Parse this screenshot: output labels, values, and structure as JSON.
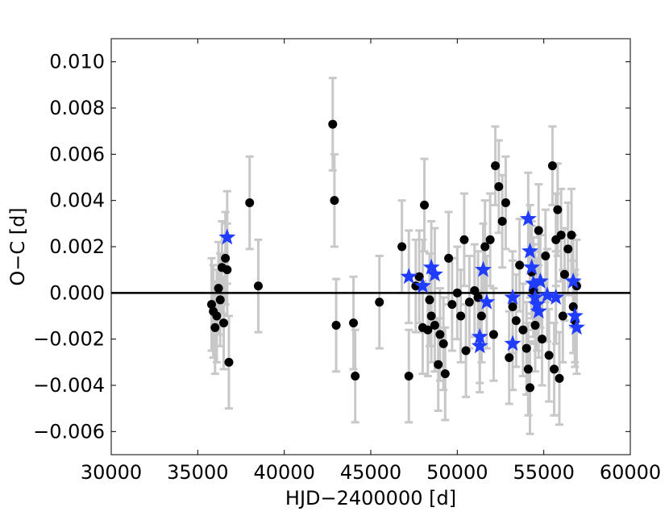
{
  "chart_data": {
    "type": "scatter",
    "xlabel": "HJD−2400000 [d]",
    "ylabel": "O−C [d]",
    "xlim": [
      30000,
      60000
    ],
    "ylim": [
      -0.007,
      0.011
    ],
    "xticks": [
      30000,
      35000,
      40000,
      45000,
      50000,
      55000,
      60000
    ],
    "yticks": [
      -0.006,
      -0.004,
      -0.002,
      0.0,
      0.002,
      0.004,
      0.006,
      0.008,
      0.01
    ],
    "xtick_labels": [
      "30000",
      "35000",
      "40000",
      "45000",
      "50000",
      "55000",
      "60000"
    ],
    "ytick_labels": [
      "−0.006",
      "−0.004",
      "−0.002",
      "0.000",
      "0.002",
      "0.004",
      "0.006",
      "0.008",
      "0.010"
    ],
    "reference_line_y": 0.0,
    "grid": false,
    "legend": "none",
    "colors": {
      "circles": "#000000",
      "stars": "#1f3cff",
      "errorbars": "#c8c8c8",
      "zero_line": "#000000"
    },
    "series": [
      {
        "marker": "circle",
        "x": [
          35800,
          35900,
          36000,
          36100,
          36200,
          36300,
          36400,
          36500,
          36600,
          36700,
          36800,
          38000,
          38500,
          42800,
          42900,
          43000,
          44000,
          44100,
          45500,
          46800,
          47200,
          47600,
          47800,
          48000,
          48100,
          48300,
          48400,
          48500,
          48700,
          48900,
          49000,
          49200,
          49300,
          49500,
          49700,
          50000,
          50200,
          50400,
          50500,
          50700,
          51000,
          51200,
          51400,
          51600,
          51900,
          52100,
          52200,
          52400,
          52600,
          52800,
          53000,
          53200,
          53400,
          53600,
          53800,
          54000,
          54100,
          54200,
          54300,
          54400,
          54500,
          54700,
          54900,
          55100,
          55300,
          55500,
          55600,
          55700,
          55800,
          55900,
          56000,
          56100,
          56200,
          56400,
          56600,
          56700,
          56800,
          56900
        ],
        "y": [
          -0.0005,
          -0.0008,
          -0.0015,
          -0.001,
          0.0002,
          -0.0003,
          0.0011,
          -0.0013,
          0.0015,
          0.001,
          -0.003,
          0.0039,
          0.0003,
          0.0073,
          0.004,
          -0.0014,
          -0.0013,
          -0.0036,
          -0.0004,
          0.002,
          -0.0036,
          0.0003,
          0.0007,
          -0.0015,
          0.0038,
          -0.0016,
          -0.0003,
          -0.001,
          -0.0014,
          -0.0031,
          -0.0018,
          -0.0022,
          -0.0035,
          0.0015,
          -0.0005,
          0.0,
          -0.001,
          0.0023,
          -0.0025,
          -0.0004,
          0.0001,
          -0.0002,
          -0.001,
          0.002,
          0.0023,
          -0.0018,
          0.0055,
          0.0046,
          0.0031,
          0.0039,
          -0.0028,
          -0.0006,
          -0.0012,
          0.0012,
          -0.0016,
          -0.0024,
          -0.0033,
          -0.0041,
          0.0009,
          0.0001,
          -0.0014,
          0.0027,
          -0.002,
          0.0016,
          -0.0027,
          0.0055,
          -0.0033,
          0.0023,
          0.0036,
          -0.0037,
          0.0025,
          -0.001,
          0.0008,
          0.0019,
          0.0025,
          -0.0006,
          -0.0012,
          0.0003
        ],
        "yerr": [
          0.002,
          0.002,
          0.002,
          0.002,
          0.002,
          0.002,
          0.002,
          0.002,
          0.002,
          0.002,
          0.002,
          0.002,
          0.002,
          0.002,
          0.002,
          0.002,
          0.002,
          0.002,
          0.002,
          0.002,
          0.002,
          0.002,
          0.002,
          0.002,
          0.002,
          0.002,
          0.002,
          0.002,
          0.002,
          0.002,
          0.002,
          0.002,
          0.002,
          0.002,
          0.002,
          0.002,
          0.002,
          0.002,
          0.002,
          0.002,
          0.002,
          0.002,
          0.002,
          0.002,
          0.002,
          0.002,
          0.0017,
          0.002,
          0.002,
          0.002,
          0.002,
          0.002,
          0.002,
          0.002,
          0.002,
          0.002,
          0.002,
          0.002,
          0.002,
          0.002,
          0.002,
          0.002,
          0.002,
          0.002,
          0.002,
          0.0017,
          0.002,
          0.002,
          0.002,
          0.002,
          0.002,
          0.002,
          0.002,
          0.002,
          0.002,
          0.002,
          0.002,
          0.002
        ]
      },
      {
        "marker": "star",
        "x": [
          36700,
          47200,
          48000,
          48500,
          48700,
          51300,
          51300,
          51500,
          51700,
          53200,
          53200,
          54100,
          54200,
          54300,
          54400,
          54500,
          54600,
          54700,
          54800,
          55200,
          55700,
          56700,
          56800,
          56900
        ],
        "y": [
          0.0024,
          0.0007,
          0.0003,
          0.0011,
          0.0008,
          -0.0019,
          -0.0023,
          0.001,
          -0.0004,
          -0.0002,
          -0.0022,
          0.0032,
          0.0018,
          0.0011,
          0.0004,
          -0.0002,
          -0.0005,
          -0.0008,
          0.0005,
          -0.0001,
          -0.0002,
          0.0005,
          -0.001,
          -0.0015
        ],
        "yerr": [
          0.002,
          0.002,
          0.002,
          0.002,
          0.002,
          0.002,
          0.002,
          0.002,
          0.002,
          0.002,
          0.002,
          0.002,
          0.002,
          0.002,
          0.002,
          0.002,
          0.002,
          0.002,
          0.002,
          0.002,
          0.002,
          0.002,
          0.002,
          0.002
        ]
      }
    ]
  }
}
